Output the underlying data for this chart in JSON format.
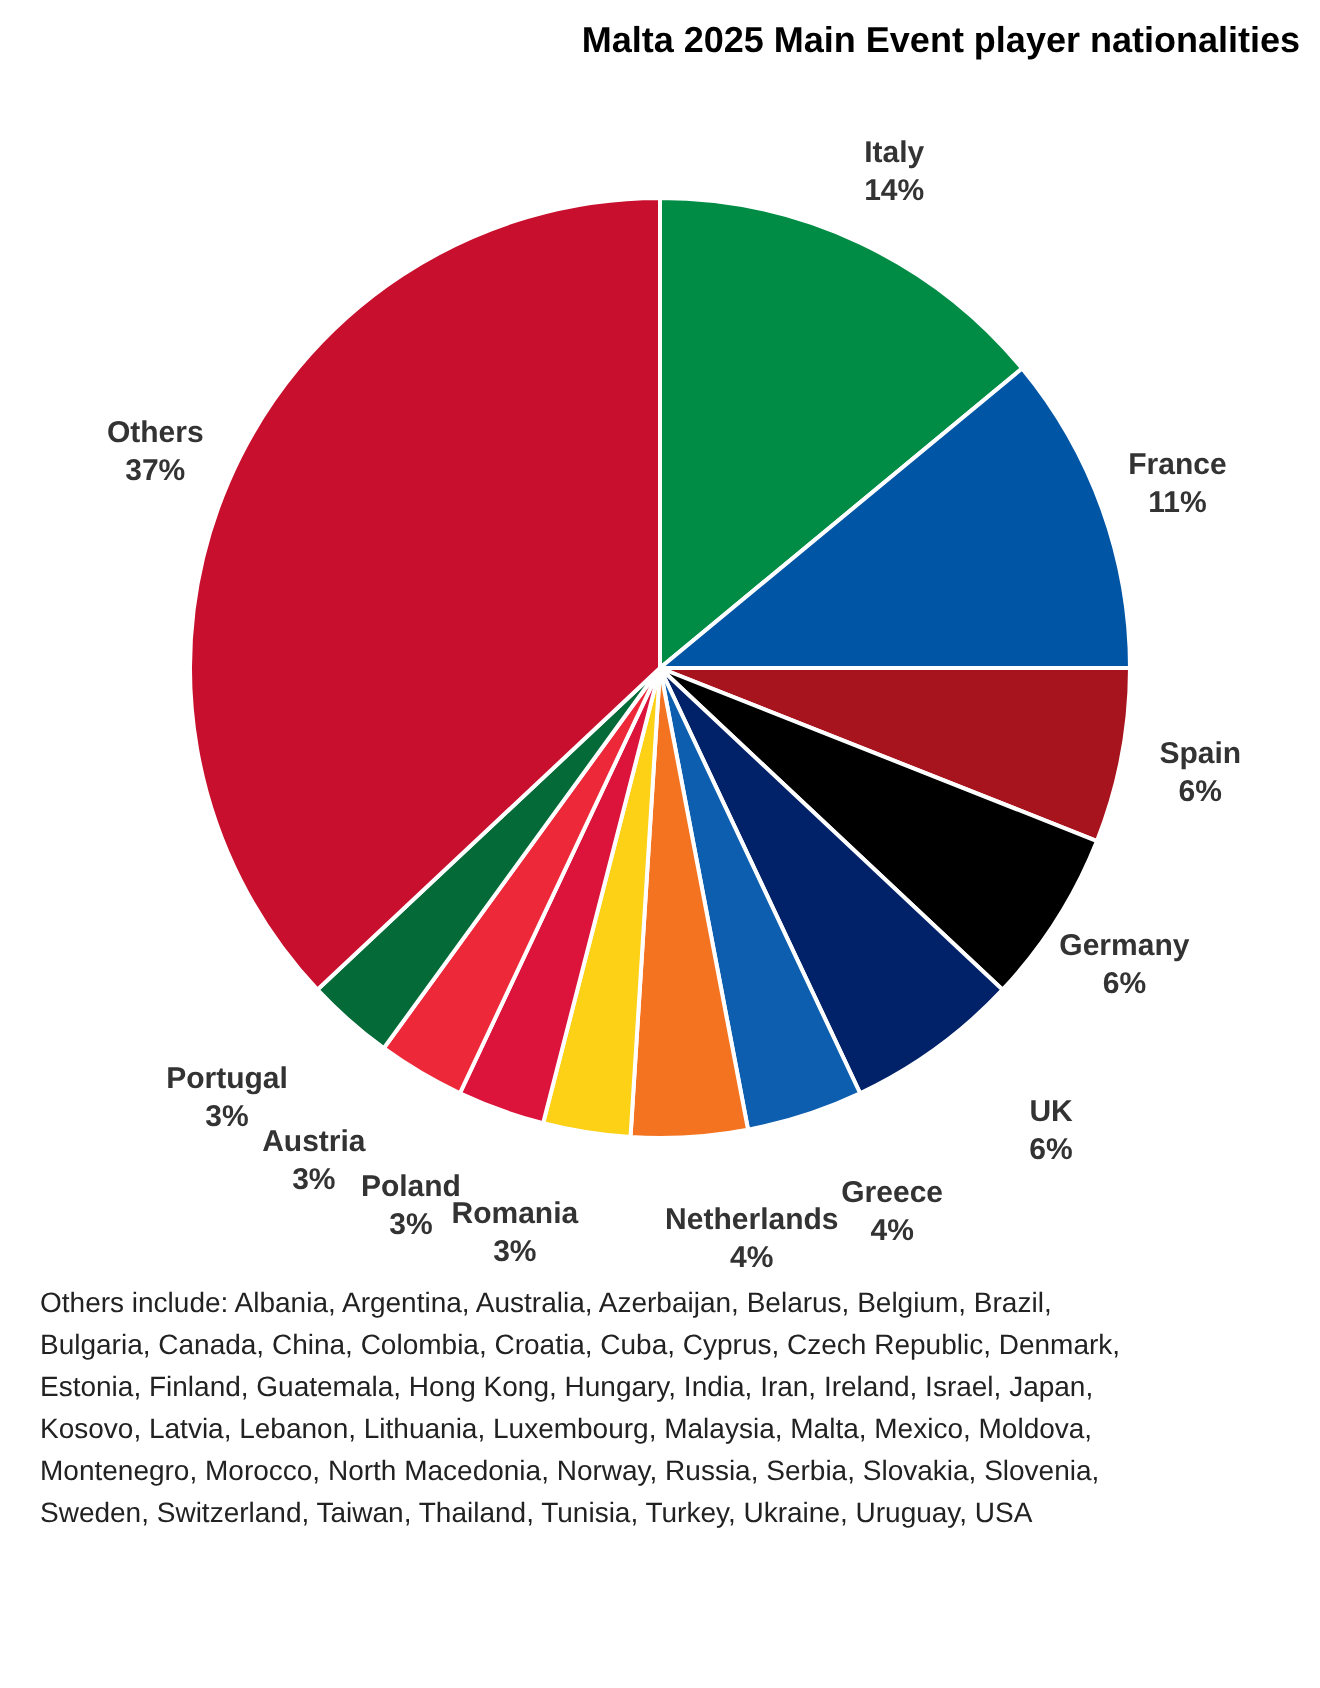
{
  "chart_data": {
    "type": "pie",
    "title": "Malta 2025 Main Event player nationalities",
    "categories": [
      "Italy",
      "France",
      "Spain",
      "Germany",
      "UK",
      "Greece",
      "Netherlands",
      "Romania",
      "Poland",
      "Austria",
      "Portugal",
      "Others"
    ],
    "values": [
      14,
      11,
      6,
      6,
      6,
      4,
      4,
      3,
      3,
      3,
      3,
      37
    ],
    "value_labels": [
      "14%",
      "11%",
      "6%",
      "6%",
      "6%",
      "4%",
      "4%",
      "3%",
      "3%",
      "3%",
      "3%",
      "37%"
    ],
    "colors": [
      "#008c45",
      "#0055a4",
      "#a8141e",
      "#000000",
      "#012169",
      "#0d5eaf",
      "#f47321",
      "#fcd116",
      "#dc143c",
      "#ed2939",
      "#046a38",
      "#c8102e"
    ],
    "legend": false,
    "annotations": [
      "Others include: Albania, Argentina, Australia, Azerbaijan, Belarus, Belgium, Brazil, Bulgaria, Canada, China, Colombia, Croatia, Cuba, Cyprus, Czech Republic, Denmark, Estonia, Finland, Guatemala, Hong Kong, Hungary, India, Iran, Ireland, Israel, Japan, Kosovo, Latvia, Lebanon, Lithuania, Luxembourg, Malaysia, Malta, Mexico, Moldova, Montenegro, Morocco, North Macedonia, Norway, Russia, Serbia, Slovakia, Slovenia, Sweden, Switzerland, Taiwan, Thailand, Tunisia, Turkey, Ukraine, Uruguay, USA"
    ]
  }
}
